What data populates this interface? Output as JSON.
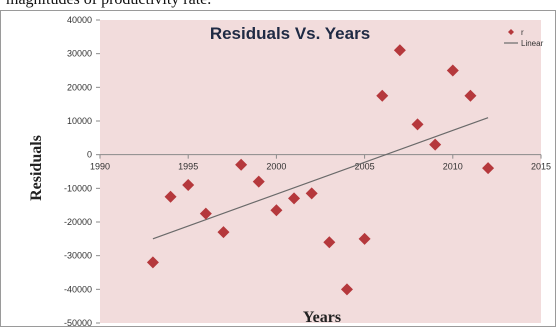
{
  "page": {
    "top_text": "magnitudes of productivity rate."
  },
  "chart_data": {
    "type": "scatter",
    "title": "Residuals Vs. Years",
    "xlabel": "Years",
    "ylabel": "Residuals",
    "xlim": [
      1990,
      2015
    ],
    "ylim": [
      -50000,
      40000
    ],
    "x_ticks": [
      1990,
      1995,
      2000,
      2005,
      2010,
      2015
    ],
    "x_tick_labels": [
      "1990",
      "1995",
      "2000",
      "2005",
      "2010",
      "2015"
    ],
    "y_ticks": [
      40000,
      30000,
      20000,
      10000,
      0,
      -10000,
      -20000,
      -30000,
      -40000,
      -50000
    ],
    "y_tick_labels": [
      "40000",
      "30000",
      "20000",
      "10000",
      "0",
      "-10000",
      "-20000",
      "-30000",
      "-40000",
      "-50000"
    ],
    "grid": false,
    "legend_position": "top-right",
    "colors": {
      "plot_background": "#f2dcdc",
      "marker": "#b5383c",
      "trendline": "#6a6a6a",
      "axis": "#8a8a8a"
    },
    "series": [
      {
        "name": "r",
        "kind": "scatter",
        "x": [
          1993,
          1994,
          1995,
          1996,
          1997,
          1998,
          1999,
          2000,
          2001,
          2002,
          2003,
          2004,
          2005,
          2006,
          2007,
          2008,
          2009,
          2010,
          2011,
          2012
        ],
        "y": [
          -32000,
          -12500,
          -9000,
          -17500,
          -23000,
          -3000,
          -8000,
          -16500,
          -13000,
          -11500,
          -26000,
          -40000,
          -25000,
          17500,
          31000,
          9000,
          3000,
          25000,
          17500,
          -4000
        ]
      },
      {
        "name": "Linear",
        "kind": "line",
        "x": [
          1993,
          2012
        ],
        "y": [
          -25000,
          11000
        ]
      }
    ]
  }
}
